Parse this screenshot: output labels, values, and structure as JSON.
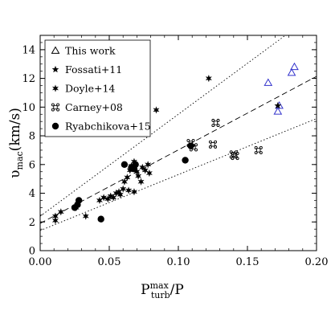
{
  "chart_data": {
    "type": "scatter",
    "xlabel": {
      "main": "P",
      "sup": "max",
      "sub": "turb",
      "tail": "/P"
    },
    "ylabel": {
      "main": "υ",
      "sub": "mac",
      "tail": "(km/s)"
    },
    "xlim": [
      0.0,
      0.2
    ],
    "ylim": [
      0,
      15
    ],
    "xticks": [
      "0.00",
      "0.05",
      "0.10",
      "0.15",
      "0.20"
    ],
    "yticks": [
      "0",
      "2",
      "4",
      "6",
      "8",
      "10",
      "12",
      "14"
    ],
    "grid": false,
    "legend_position": "top-left",
    "series": [
      {
        "name": "This work",
        "marker": "open-triangle",
        "color": "#3333cc",
        "points": [
          [
            0.165,
            11.7
          ],
          [
            0.182,
            12.4
          ],
          [
            0.184,
            12.8
          ],
          [
            0.172,
            9.7
          ],
          [
            0.173,
            10.1
          ]
        ]
      },
      {
        "name": "Fossati+11",
        "marker": "star",
        "color": "#000000",
        "points": [
          [
            0.172,
            10.1
          ]
        ]
      },
      {
        "name": "Doyle+14",
        "marker": "star",
        "color": "#000000",
        "points": [
          [
            0.011,
            2.1
          ],
          [
            0.011,
            2.4
          ],
          [
            0.015,
            2.7
          ],
          [
            0.026,
            3.0
          ],
          [
            0.033,
            2.4
          ],
          [
            0.043,
            3.5
          ],
          [
            0.046,
            3.7
          ],
          [
            0.049,
            3.6
          ],
          [
            0.051,
            3.8
          ],
          [
            0.053,
            3.7
          ],
          [
            0.055,
            4.0
          ],
          [
            0.057,
            4.1
          ],
          [
            0.058,
            3.9
          ],
          [
            0.06,
            4.3
          ],
          [
            0.061,
            4.8
          ],
          [
            0.063,
            5.1
          ],
          [
            0.064,
            4.2
          ],
          [
            0.065,
            5.6
          ],
          [
            0.066,
            5.9
          ],
          [
            0.068,
            6.2
          ],
          [
            0.068,
            4.1
          ],
          [
            0.07,
            5.5
          ],
          [
            0.071,
            5.2
          ],
          [
            0.073,
            4.8
          ],
          [
            0.074,
            5.8
          ],
          [
            0.076,
            5.6
          ],
          [
            0.078,
            6.0
          ],
          [
            0.079,
            5.4
          ],
          [
            0.084,
            9.8
          ],
          [
            0.122,
            12.0
          ]
        ]
      },
      {
        "name": "Carney+08",
        "marker": "cmd",
        "color": "#000000",
        "points": [
          [
            0.109,
            7.5
          ],
          [
            0.111,
            7.2
          ],
          [
            0.125,
            7.4
          ],
          [
            0.127,
            8.9
          ],
          [
            0.14,
            6.7
          ],
          [
            0.141,
            6.6
          ],
          [
            0.158,
            7.0
          ]
        ]
      },
      {
        "name": "Ryabchikova+15",
        "marker": "filled-circle",
        "color": "#000000",
        "points": [
          [
            0.025,
            3.0
          ],
          [
            0.027,
            3.2
          ],
          [
            0.028,
            3.5
          ],
          [
            0.044,
            2.2
          ],
          [
            0.061,
            6.0
          ],
          [
            0.066,
            5.8
          ],
          [
            0.068,
            5.7
          ],
          [
            0.069,
            6.0
          ],
          [
            0.105,
            6.3
          ],
          [
            0.109,
            7.3
          ]
        ]
      }
    ],
    "lines": [
      {
        "style": "dashed",
        "intercept": 1.9,
        "slope": 51.2
      },
      {
        "style": "dotted",
        "intercept": 2.4,
        "slope": 71.0
      },
      {
        "style": "dotted",
        "intercept": 1.4,
        "slope": 39.0
      }
    ]
  }
}
